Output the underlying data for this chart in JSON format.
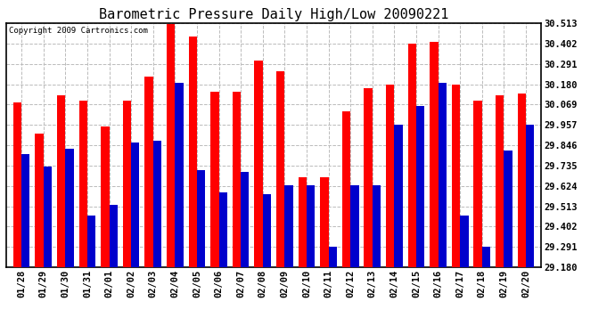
{
  "title": "Barometric Pressure Daily High/Low 20090221",
  "copyright": "Copyright 2009 Cartronics.com",
  "categories": [
    "01/28",
    "01/29",
    "01/30",
    "01/31",
    "02/01",
    "02/02",
    "02/03",
    "02/04",
    "02/05",
    "02/06",
    "02/07",
    "02/08",
    "02/09",
    "02/10",
    "02/11",
    "02/12",
    "02/13",
    "02/14",
    "02/15",
    "02/16",
    "02/17",
    "02/18",
    "02/19",
    "02/20"
  ],
  "highs": [
    30.08,
    29.91,
    30.12,
    30.09,
    29.95,
    30.09,
    30.22,
    30.51,
    30.44,
    30.14,
    30.14,
    30.31,
    30.25,
    29.67,
    29.67,
    30.03,
    30.16,
    30.18,
    30.4,
    30.41,
    30.18,
    30.09,
    30.12,
    30.13
  ],
  "lows": [
    29.8,
    29.73,
    29.83,
    29.46,
    29.52,
    29.86,
    29.87,
    30.19,
    29.71,
    29.59,
    29.7,
    29.58,
    29.63,
    29.63,
    29.29,
    29.63,
    29.63,
    29.96,
    30.06,
    30.19,
    29.46,
    29.29,
    29.82,
    29.96
  ],
  "ymin": 29.18,
  "ymax": 30.513,
  "yticks": [
    29.18,
    29.291,
    29.402,
    29.513,
    29.624,
    29.735,
    29.846,
    29.957,
    30.069,
    30.18,
    30.291,
    30.402,
    30.513
  ],
  "bar_width": 0.38,
  "high_color": "#FF0000",
  "low_color": "#0000CC",
  "bg_color": "#FFFFFF",
  "grid_color": "#BBBBBB",
  "title_fontsize": 11,
  "tick_fontsize": 7.5,
  "copyright_fontsize": 6.5
}
